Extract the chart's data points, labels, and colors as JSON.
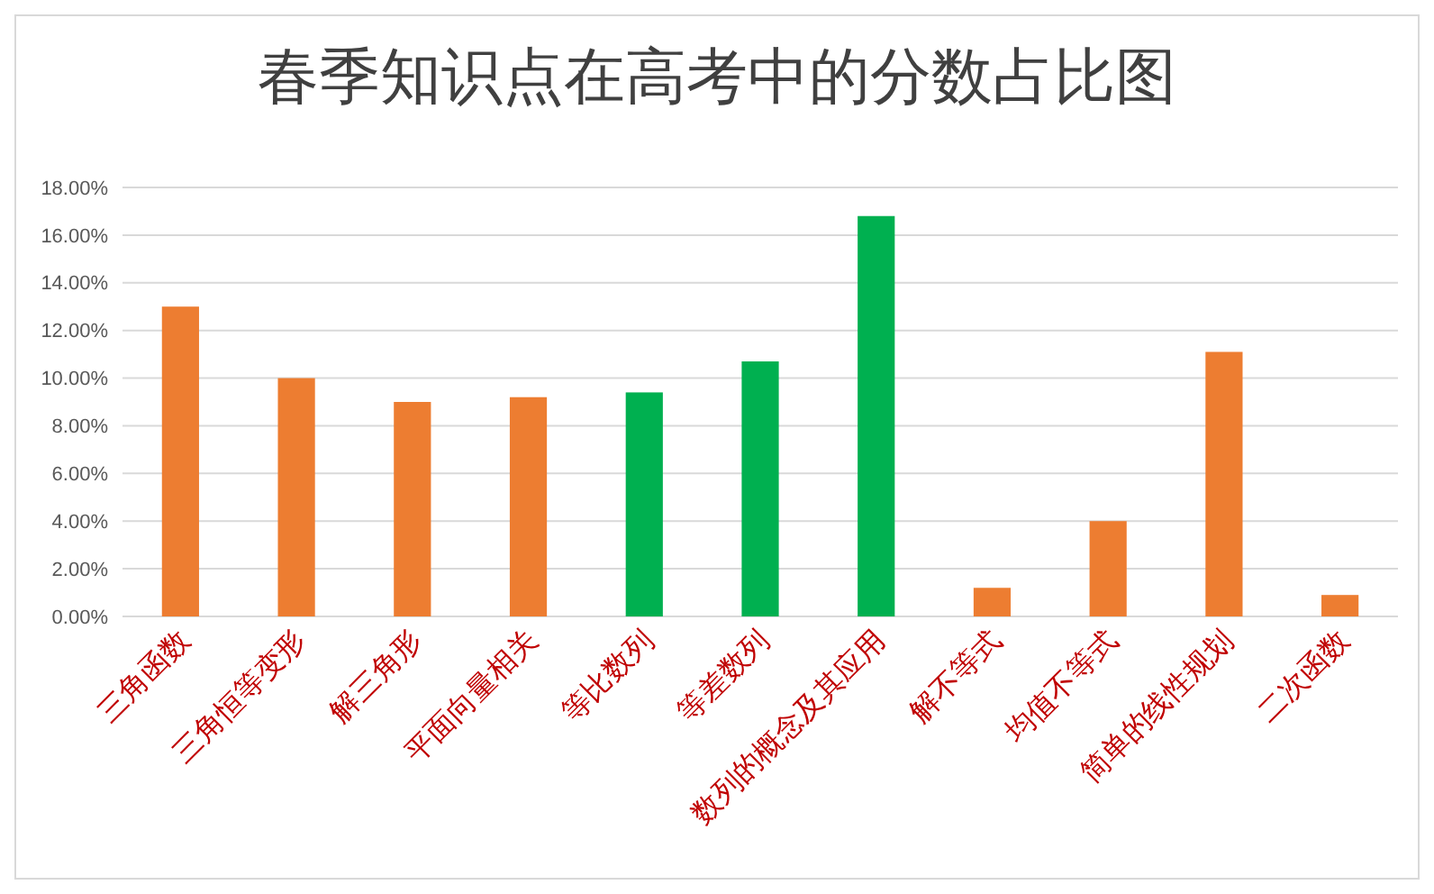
{
  "chart_data": {
    "type": "bar",
    "title": "春季知识点在高考中的分数占比图",
    "categories": [
      "三角函数",
      "三角恒等变形",
      "解三角形",
      "平面向量相关",
      "等比数列",
      "等差数列",
      "数列的概念及其应用",
      "解不等式",
      "均值不等式",
      "简单的线性规划",
      "二次函数"
    ],
    "values": [
      13.0,
      10.0,
      9.0,
      9.2,
      9.4,
      10.7,
      16.8,
      1.2,
      4.0,
      11.1,
      0.9
    ],
    "colors": [
      "#ed7d31",
      "#ed7d31",
      "#ed7d31",
      "#ed7d31",
      "#00b050",
      "#00b050",
      "#00b050",
      "#ed7d31",
      "#ed7d31",
      "#ed7d31",
      "#ed7d31"
    ],
    "ylim": [
      0,
      18
    ],
    "yticks": [
      {
        "value": 0,
        "label": "0.00%"
      },
      {
        "value": 2,
        "label": "2.00%"
      },
      {
        "value": 4,
        "label": "4.00%"
      },
      {
        "value": 6,
        "label": "6.00%"
      },
      {
        "value": 8,
        "label": "8.00%"
      },
      {
        "value": 10,
        "label": "10.00%"
      },
      {
        "value": 12,
        "label": "12.00%"
      },
      {
        "value": 14,
        "label": "14.00%"
      },
      {
        "value": 16,
        "label": "16.00%"
      },
      {
        "value": 18,
        "label": "18.00%"
      }
    ],
    "grid": "y"
  }
}
